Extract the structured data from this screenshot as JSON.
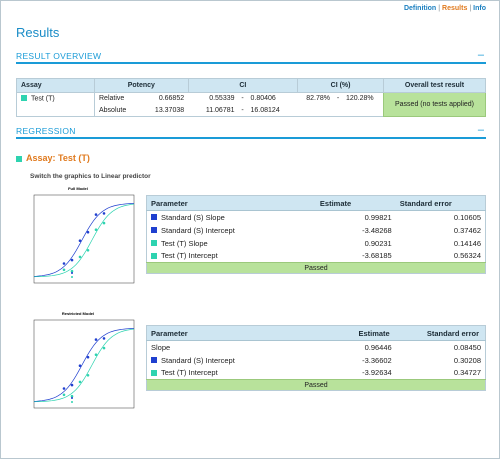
{
  "nav": {
    "definition": "Definition",
    "results": "Results",
    "info": "Info",
    "sep": "|"
  },
  "page_title": "Results",
  "overview": {
    "section_label": "RESULT OVERVIEW",
    "toggle": "–",
    "headers": [
      "Assay",
      "Potency",
      "CI",
      "CI (%)",
      "Overall test result"
    ],
    "assay_name": "Test (T)",
    "assay_color": "#2ed3b0",
    "rows": [
      {
        "kind": "Relative",
        "potency": "0.66852",
        "ci_low": "0.55339",
        "ci_sep": "-",
        "ci_high": "0.80406",
        "cip_low": "82.78%",
        "cip_sep": "-",
        "cip_high": "120.28%"
      },
      {
        "kind": "Absolute",
        "potency": "13.37038",
        "ci_low": "11.06781",
        "ci_sep": "-",
        "ci_high": "16.08124",
        "cip_low": "",
        "cip_sep": "",
        "cip_high": ""
      }
    ],
    "overall_result": "Passed (no tests applied)"
  },
  "regression": {
    "section_label": "REGRESSION",
    "toggle": "–",
    "assay_label": "Assay: Test (T)",
    "switch_link": "Switch the graphics to Linear predictor",
    "colors": {
      "standard": "#1f3fcf",
      "test": "#2ed3b0"
    },
    "full_model": {
      "plot_title": "Full Model",
      "headers": [
        "Parameter",
        "Estimate",
        "Standard error"
      ],
      "rows": [
        {
          "name": "Standard (S) Slope",
          "series": "standard",
          "estimate": "0.99821",
          "se": "0.10605"
        },
        {
          "name": "Standard (S) Intercept",
          "series": "standard",
          "estimate": "-3.48268",
          "se": "0.37462"
        },
        {
          "name": "Test (T) Slope",
          "series": "test",
          "estimate": "0.90231",
          "se": "0.14146"
        },
        {
          "name": "Test (T) Intercept",
          "series": "test",
          "estimate": "-3.68185",
          "se": "0.56324"
        }
      ],
      "status": "Passed"
    },
    "restricted_model": {
      "plot_title": "Restricted Model",
      "headers": [
        "Parameter",
        "Estimate",
        "Standard error"
      ],
      "rows": [
        {
          "name": "Slope",
          "series": "",
          "estimate": "0.96446",
          "se": "0.08450"
        },
        {
          "name": "Standard (S) Intercept",
          "series": "standard",
          "estimate": "-3.36602",
          "se": "0.30208"
        },
        {
          "name": "Test (T) Intercept",
          "series": "test",
          "estimate": "-3.92634",
          "se": "0.34727"
        }
      ],
      "status": "Passed"
    }
  }
}
